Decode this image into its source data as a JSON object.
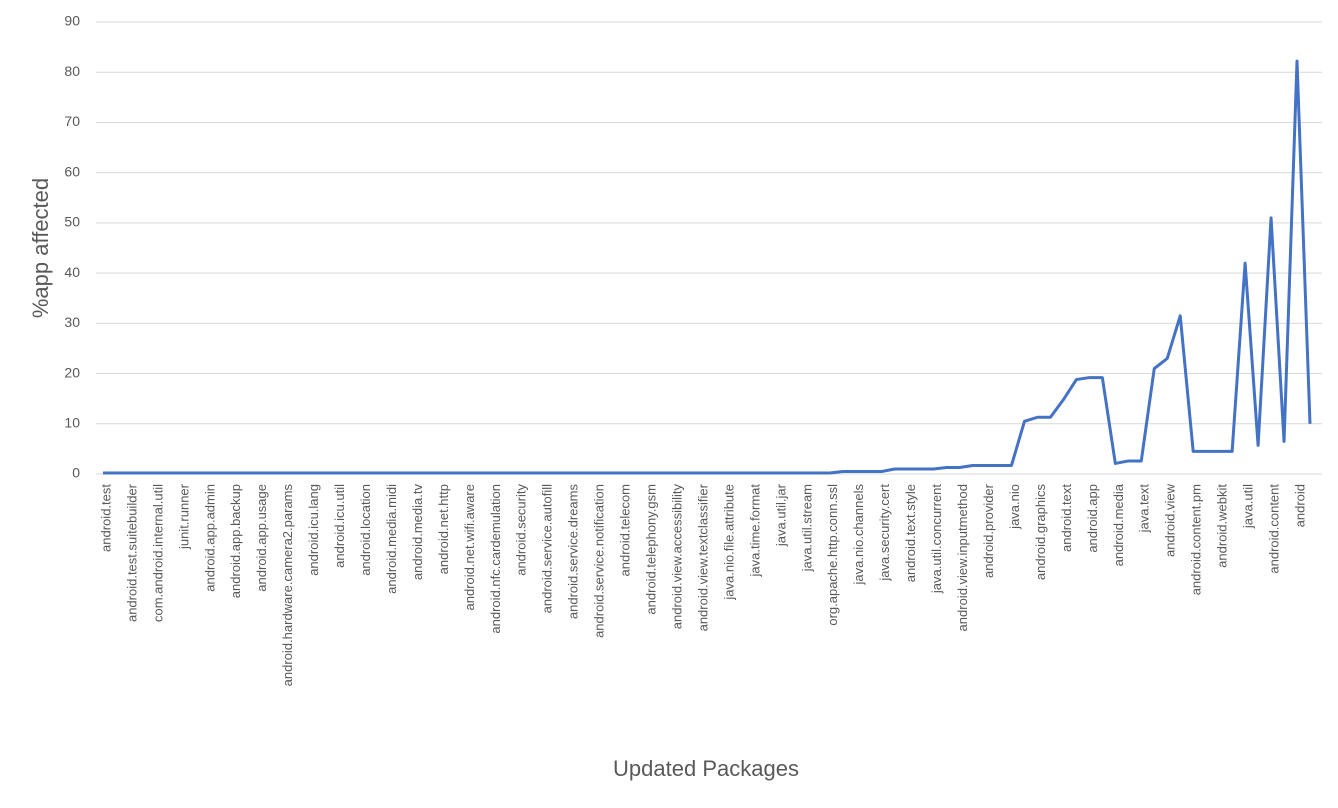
{
  "chart_data": {
    "type": "line",
    "x_label": "Updated Packages",
    "y_label": "%app affected",
    "categories": [
      "android.test",
      null,
      "android.test.suitebuilder",
      null,
      "com.android.internal.util",
      null,
      "junit.runner",
      null,
      "android.app.admin",
      null,
      "android.app.backup",
      null,
      "android.app.usage",
      null,
      "android.hardware.camera2.params",
      null,
      "android.icu.lang",
      null,
      "android.icu.util",
      null,
      "android.location",
      null,
      "android.media.midi",
      null,
      "android.media.tv",
      null,
      "android.net.http",
      null,
      "android.net.wifi.aware",
      null,
      "android.nfc.cardemulation",
      null,
      "android.security",
      null,
      "android.service.autofill",
      null,
      "android.service.dreams",
      null,
      "android.service.notification",
      null,
      "android.telecom",
      null,
      "android.telephony.gsm",
      null,
      "android.view.accessibility",
      null,
      "android.view.textclassifier",
      null,
      "java.nio.file.attribute",
      null,
      "java.time.format",
      null,
      "java.util.jar",
      null,
      "java.util.stream",
      null,
      "org.apache.http.conn.ssl",
      null,
      "java.nio.channels",
      null,
      "java.security.cert",
      null,
      "android.text.style",
      null,
      "java.util.concurrent",
      null,
      "android.view.inputmethod",
      null,
      "android.provider",
      null,
      "java.nio",
      null,
      "android.graphics",
      null,
      "android.text",
      null,
      "android.app",
      null,
      "android.media",
      null,
      "java.text",
      null,
      "android.view",
      null,
      "android.content.pm",
      null,
      "android.webkit",
      null,
      "java.util",
      null,
      "android.content",
      null,
      "android",
      null
    ],
    "series": [
      {
        "color": "#4472c4",
        "values": [
          0.2,
          0.2,
          0.2,
          0.2,
          0.2,
          0.2,
          0.2,
          0.2,
          0.2,
          0.2,
          0.2,
          0.2,
          0.2,
          0.2,
          0.2,
          0.2,
          0.2,
          0.2,
          0.2,
          0.2,
          0.2,
          0.2,
          0.2,
          0.2,
          0.2,
          0.2,
          0.2,
          0.2,
          0.2,
          0.2,
          0.2,
          0.2,
          0.2,
          0.2,
          0.2,
          0.2,
          0.2,
          0.2,
          0.2,
          0.2,
          0.2,
          0.2,
          0.2,
          0.2,
          0.2,
          0.2,
          0.2,
          0.2,
          0.2,
          0.2,
          0.2,
          0.2,
          0.2,
          0.2,
          0.2,
          0.2,
          0.2,
          0.5,
          0.5,
          0.5,
          0.5,
          1,
          1,
          1,
          1,
          1.3,
          1.3,
          1.7,
          1.7,
          1.7,
          1.7,
          10.5,
          11.3,
          11.3,
          14.8,
          18.8,
          19.2,
          19.2,
          2.1,
          2.6,
          2.6,
          21,
          23,
          31.5,
          4.5,
          4.5,
          4.5,
          4.5,
          42,
          5.7,
          51,
          6.5,
          82.2,
          10
        ]
      }
    ],
    "ylim": [
      0,
      90
    ],
    "yticks": [
      0,
      10,
      20,
      30,
      40,
      50,
      60,
      70,
      80,
      90
    ],
    "grid": true
  }
}
